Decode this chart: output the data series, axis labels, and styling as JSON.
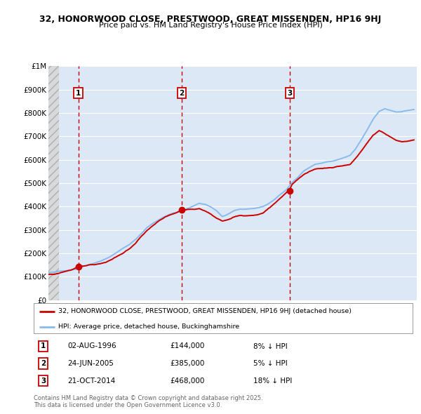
{
  "title_line1": "32, HONORWOOD CLOSE, PRESTWOOD, GREAT MISSENDEN, HP16 9HJ",
  "title_line2": "Price paid vs. HM Land Registry's House Price Index (HPI)",
  "background_color": "#ffffff",
  "plot_bg_color": "#dce8f5",
  "grid_color": "#ffffff",
  "red_line_color": "#cc0000",
  "blue_line_color": "#88bbee",
  "dashed_color": "#cc0000",
  "yticks": [
    0,
    100000,
    200000,
    300000,
    400000,
    500000,
    600000,
    700000,
    800000,
    900000,
    1000000
  ],
  "ytick_labels": [
    "£0",
    "£100K",
    "£200K",
    "£300K",
    "£400K",
    "£500K",
    "£600K",
    "£700K",
    "£800K",
    "£900K",
    "£1M"
  ],
  "xmin": 1994.0,
  "xmax": 2025.75,
  "ymin": 0,
  "ymax": 1000000,
  "hatch_xend": 1994.92,
  "sales": [
    {
      "label": "1",
      "date": 1996.58,
      "price": 144000,
      "hpi_pct": "8% ↓ HPI",
      "date_str": "02-AUG-1996",
      "price_str": "£144,000"
    },
    {
      "label": "2",
      "date": 2005.48,
      "price": 385000,
      "hpi_pct": "5% ↓ HPI",
      "date_str": "24-JUN-2005",
      "price_str": "£385,000"
    },
    {
      "label": "3",
      "date": 2014.8,
      "price": 468000,
      "hpi_pct": "18% ↓ HPI",
      "date_str": "21-OCT-2014",
      "price_str": "£468,000"
    }
  ],
  "legend_label_red": "32, HONORWOOD CLOSE, PRESTWOOD, GREAT MISSENDEN, HP16 9HJ (detached house)",
  "legend_label_blue": "HPI: Average price, detached house, Buckinghamshire",
  "footer_line1": "Contains HM Land Registry data © Crown copyright and database right 2025.",
  "footer_line2": "This data is licensed under the Open Government Licence v3.0.",
  "hpi_anchors": [
    [
      1994.0,
      118000
    ],
    [
      1994.5,
      120000
    ],
    [
      1995.0,
      125000
    ],
    [
      1995.5,
      128000
    ],
    [
      1996.0,
      132000
    ],
    [
      1996.5,
      136000
    ],
    [
      1997.0,
      145000
    ],
    [
      1997.5,
      153000
    ],
    [
      1998.0,
      160000
    ],
    [
      1998.5,
      168000
    ],
    [
      1999.0,
      178000
    ],
    [
      1999.5,
      192000
    ],
    [
      2000.0,
      208000
    ],
    [
      2000.5,
      225000
    ],
    [
      2001.0,
      240000
    ],
    [
      2001.5,
      260000
    ],
    [
      2002.0,
      285000
    ],
    [
      2002.5,
      312000
    ],
    [
      2003.0,
      330000
    ],
    [
      2003.5,
      345000
    ],
    [
      2004.0,
      358000
    ],
    [
      2004.5,
      368000
    ],
    [
      2005.0,
      374000
    ],
    [
      2005.5,
      382000
    ],
    [
      2006.0,
      393000
    ],
    [
      2006.5,
      403000
    ],
    [
      2007.0,
      415000
    ],
    [
      2007.5,
      412000
    ],
    [
      2008.0,
      400000
    ],
    [
      2008.5,
      383000
    ],
    [
      2009.0,
      358000
    ],
    [
      2009.5,
      368000
    ],
    [
      2010.0,
      382000
    ],
    [
      2010.5,
      388000
    ],
    [
      2011.0,
      388000
    ],
    [
      2011.5,
      390000
    ],
    [
      2012.0,
      392000
    ],
    [
      2012.5,
      398000
    ],
    [
      2013.0,
      410000
    ],
    [
      2013.5,
      428000
    ],
    [
      2014.0,
      450000
    ],
    [
      2014.5,
      468000
    ],
    [
      2015.0,
      500000
    ],
    [
      2015.5,
      522000
    ],
    [
      2016.0,
      548000
    ],
    [
      2016.5,
      563000
    ],
    [
      2017.0,
      578000
    ],
    [
      2017.5,
      582000
    ],
    [
      2018.0,
      588000
    ],
    [
      2018.5,
      592000
    ],
    [
      2019.0,
      600000
    ],
    [
      2019.5,
      608000
    ],
    [
      2020.0,
      618000
    ],
    [
      2020.5,
      648000
    ],
    [
      2021.0,
      688000
    ],
    [
      2021.5,
      730000
    ],
    [
      2022.0,
      775000
    ],
    [
      2022.5,
      808000
    ],
    [
      2023.0,
      820000
    ],
    [
      2023.5,
      812000
    ],
    [
      2024.0,
      805000
    ],
    [
      2024.5,
      808000
    ],
    [
      2025.0,
      812000
    ],
    [
      2025.5,
      815000
    ]
  ],
  "prop_anchors": [
    [
      1994.0,
      110000
    ],
    [
      1994.5,
      112000
    ],
    [
      1995.0,
      118000
    ],
    [
      1995.5,
      123000
    ],
    [
      1996.0,
      128000
    ],
    [
      1996.58,
      144000
    ],
    [
      1997.0,
      145000
    ],
    [
      1997.5,
      148000
    ],
    [
      1998.0,
      150000
    ],
    [
      1998.5,
      155000
    ],
    [
      1999.0,
      162000
    ],
    [
      1999.5,
      172000
    ],
    [
      2000.0,
      185000
    ],
    [
      2000.5,
      200000
    ],
    [
      2001.0,
      218000
    ],
    [
      2001.5,
      242000
    ],
    [
      2002.0,
      270000
    ],
    [
      2002.5,
      295000
    ],
    [
      2003.0,
      315000
    ],
    [
      2003.5,
      335000
    ],
    [
      2004.0,
      352000
    ],
    [
      2004.5,
      365000
    ],
    [
      2005.0,
      372000
    ],
    [
      2005.48,
      385000
    ],
    [
      2006.0,
      388000
    ],
    [
      2006.5,
      390000
    ],
    [
      2007.0,
      395000
    ],
    [
      2007.5,
      385000
    ],
    [
      2008.0,
      370000
    ],
    [
      2008.5,
      352000
    ],
    [
      2009.0,
      338000
    ],
    [
      2009.5,
      345000
    ],
    [
      2010.0,
      355000
    ],
    [
      2010.5,
      360000
    ],
    [
      2011.0,
      358000
    ],
    [
      2011.5,
      360000
    ],
    [
      2012.0,
      362000
    ],
    [
      2012.5,
      370000
    ],
    [
      2013.0,
      388000
    ],
    [
      2013.5,
      408000
    ],
    [
      2014.0,
      432000
    ],
    [
      2014.8,
      468000
    ],
    [
      2015.0,
      490000
    ],
    [
      2015.5,
      510000
    ],
    [
      2016.0,
      532000
    ],
    [
      2016.5,
      548000
    ],
    [
      2017.0,
      558000
    ],
    [
      2017.5,
      560000
    ],
    [
      2018.0,
      562000
    ],
    [
      2018.5,
      565000
    ],
    [
      2019.0,
      570000
    ],
    [
      2019.5,
      575000
    ],
    [
      2020.0,
      580000
    ],
    [
      2020.5,
      605000
    ],
    [
      2021.0,
      638000
    ],
    [
      2021.5,
      672000
    ],
    [
      2022.0,
      705000
    ],
    [
      2022.5,
      725000
    ],
    [
      2023.0,
      710000
    ],
    [
      2023.5,
      695000
    ],
    [
      2024.0,
      682000
    ],
    [
      2024.5,
      678000
    ],
    [
      2025.0,
      682000
    ],
    [
      2025.5,
      685000
    ]
  ]
}
